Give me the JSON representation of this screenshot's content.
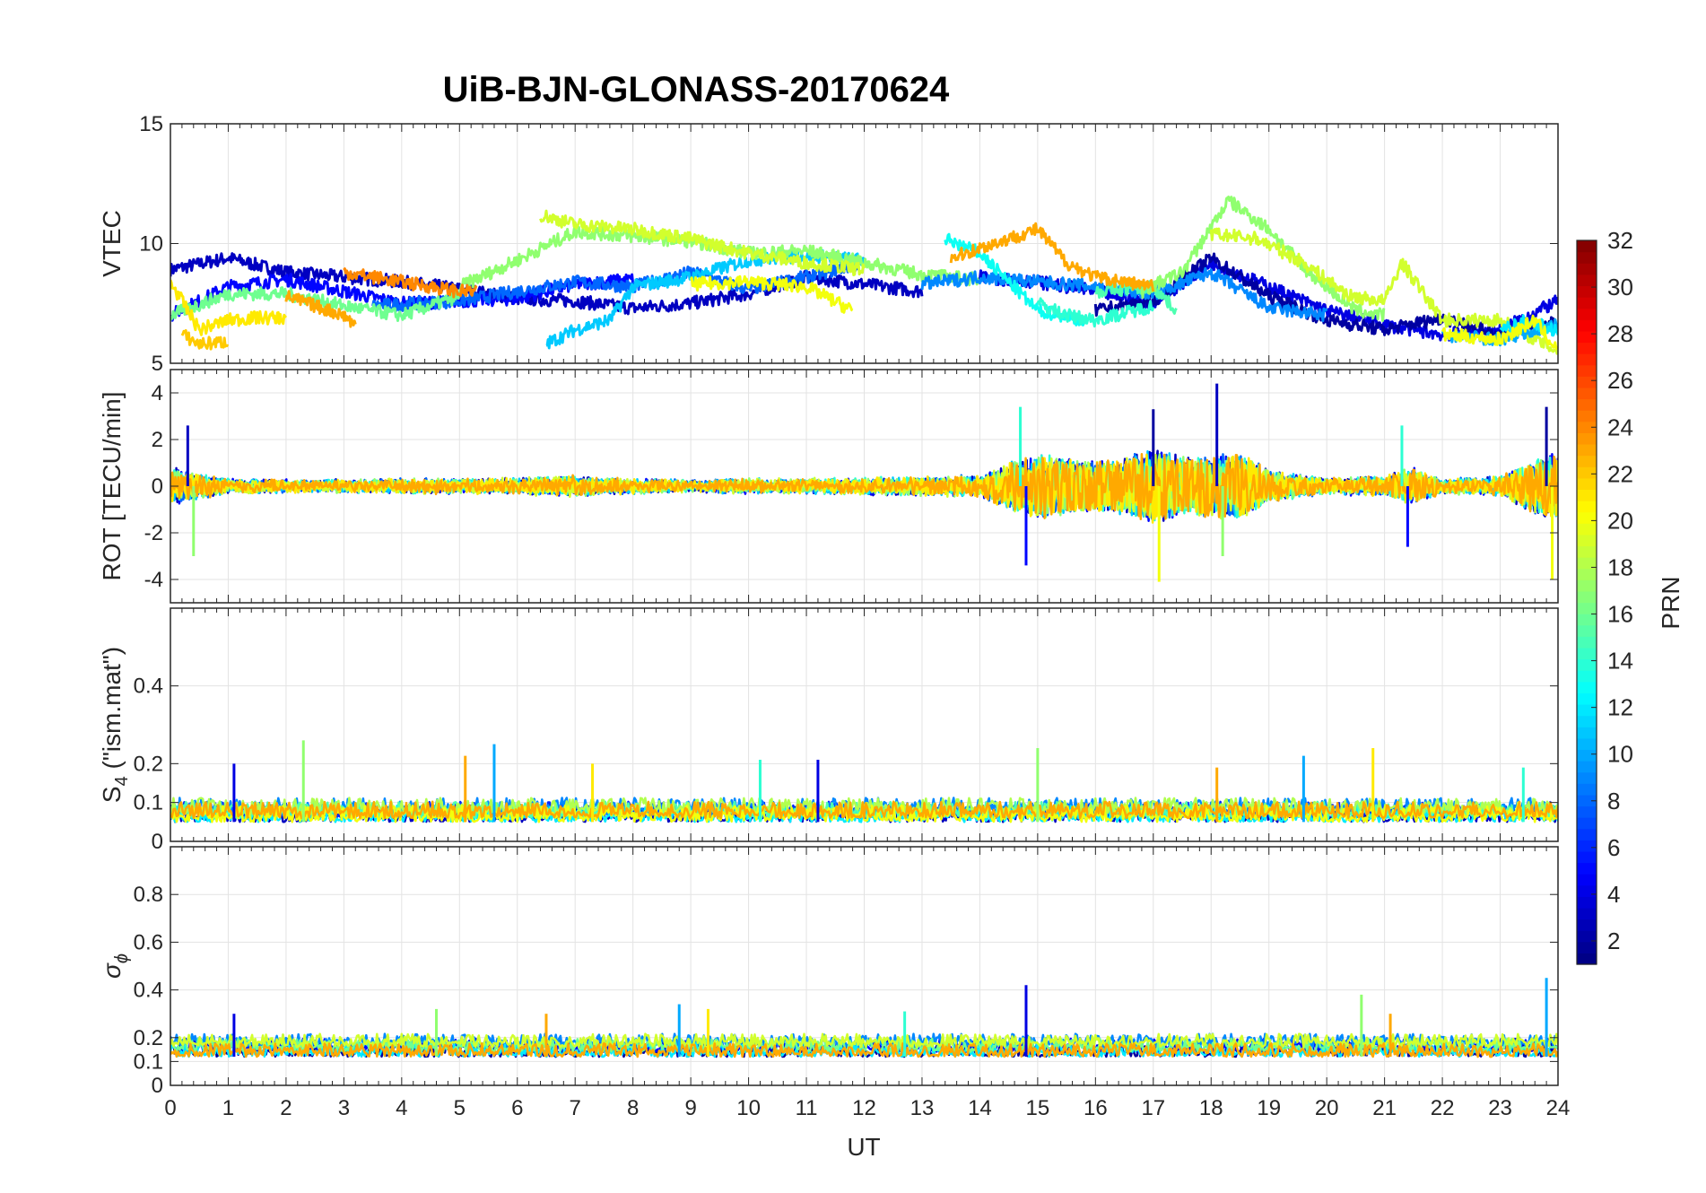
{
  "chart_data": {
    "type": "line",
    "title": "UiB-BJN-GLONASS-20170624",
    "xlabel": "UT",
    "xlim": [
      0,
      24
    ],
    "x_ticks": [
      "0",
      "1",
      "2",
      "3",
      "4",
      "5",
      "6",
      "7",
      "8",
      "9",
      "10",
      "11",
      "12",
      "13",
      "14",
      "15",
      "16",
      "17",
      "18",
      "19",
      "20",
      "21",
      "22",
      "23",
      "24"
    ],
    "grid": true,
    "colorbar": {
      "label": "PRN",
      "range": [
        1,
        32
      ],
      "ticks": [
        "2",
        "4",
        "6",
        "8",
        "10",
        "12",
        "14",
        "16",
        "18",
        "20",
        "22",
        "24",
        "26",
        "28",
        "30",
        "32"
      ],
      "colormap": "jet"
    },
    "panels": [
      {
        "ylabel": "VTEC",
        "ylim": [
          5,
          15
        ],
        "y_ticks": [
          "5",
          "10",
          "15"
        ],
        "series": [
          {
            "prn": 3,
            "x": [
              0,
              1,
              2,
              3,
              4,
              5,
              6,
              7,
              8,
              9,
              10,
              11,
              12,
              13
            ],
            "y": [
              8.9,
              9.4,
              8.8,
              8.6,
              8.4,
              8.1,
              7.7,
              7.6,
              7.3,
              7.5,
              7.9,
              8.6,
              8.3,
              8.0
            ]
          },
          {
            "prn": 5,
            "x": [
              0,
              1,
              2,
              3,
              4,
              5,
              6,
              7,
              8
            ],
            "y": [
              7.0,
              8.2,
              8.5,
              8.0,
              7.5,
              7.6,
              7.7,
              8.3,
              8.5
            ]
          },
          {
            "prn": 8,
            "x": [
              3.5,
              5,
              6,
              7,
              8,
              9,
              10,
              11,
              12
            ],
            "y": [
              7.4,
              7.6,
              8.0,
              8.4,
              8.2,
              8.8,
              8.1,
              8.6,
              9.2
            ]
          },
          {
            "prn": 11,
            "x": [
              6.5,
              7,
              7.6,
              8,
              9,
              10,
              11,
              12
            ],
            "y": [
              5.8,
              6.4,
              6.8,
              8.2,
              8.6,
              9.3,
              9.5,
              9.3
            ]
          },
          {
            "prn": 16,
            "x": [
              0,
              1,
              2,
              3,
              4,
              5
            ],
            "y": [
              7.0,
              7.9,
              7.9,
              7.4,
              7.0,
              7.8
            ]
          },
          {
            "prn": 17,
            "x": [
              5,
              6,
              7,
              8,
              9,
              10,
              11,
              12,
              13,
              14
            ],
            "y": [
              8.2,
              9.3,
              10.5,
              10.3,
              10.1,
              9.6,
              9.7,
              9.2,
              8.7,
              8.5
            ]
          },
          {
            "prn": 19,
            "x": [
              6.4,
              7,
              8,
              9,
              10,
              11,
              12
            ],
            "y": [
              11.2,
              10.8,
              10.6,
              10.2,
              9.6,
              9.2,
              8.9
            ]
          },
          {
            "prn": 20,
            "x": [
              9,
              10,
              11,
              11.8
            ],
            "y": [
              8.3,
              8.4,
              8.2,
              7.2
            ]
          },
          {
            "prn": 21,
            "x": [
              0,
              0.5,
              1,
              1.5,
              2
            ],
            "y": [
              8.4,
              6.4,
              6.8,
              6.9,
              6.9
            ]
          },
          {
            "prn": 22,
            "x": [
              0.2,
              0.5,
              1
            ],
            "y": [
              6.2,
              5.8,
              5.9
            ]
          },
          {
            "prn": 23,
            "x": [
              2,
              3,
              3.2
            ],
            "y": [
              7.8,
              7.0,
              6.6
            ]
          },
          {
            "prn": 24,
            "x": [
              3,
              4,
              5,
              5.3
            ],
            "y": [
              8.8,
              8.4,
              8.0,
              8.0
            ]
          },
          {
            "prn": 4,
            "x": [
              14,
              15,
              16,
              17,
              18,
              19,
              20,
              21,
              22,
              23,
              24
            ],
            "y": [
              8.6,
              8.4,
              8.0,
              7.5,
              9.2,
              8.2,
              7.2,
              6.6,
              6.2,
              6.4,
              7.6
            ]
          },
          {
            "prn": 2,
            "x": [
              16,
              17,
              18,
              19,
              20,
              21,
              22,
              23,
              24
            ],
            "y": [
              7.2,
              7.6,
              9.4,
              7.8,
              6.8,
              6.4,
              6.9,
              6.2,
              6.7
            ]
          },
          {
            "prn": 9,
            "x": [
              13,
              14,
              15,
              16,
              17,
              18,
              19,
              20
            ],
            "y": [
              8.3,
              8.6,
              8.4,
              8.2,
              7.9,
              8.8,
              7.3,
              7.0
            ]
          },
          {
            "prn": 13,
            "x": [
              13.4,
              14,
              15,
              15.8
            ],
            "y": [
              10.2,
              9.6,
              7.2,
              6.8
            ]
          },
          {
            "prn": 14,
            "x": [
              15,
              15.5,
              16,
              17
            ],
            "y": [
              7.5,
              7.0,
              6.8,
              7.4
            ]
          },
          {
            "prn": 15,
            "x": [
              16,
              17,
              17.4
            ],
            "y": [
              8.0,
              8.2,
              7.2
            ]
          },
          {
            "prn": 17,
            "x": [
              16.8,
              17.5,
              18.3,
              19,
              19.6,
              20.5,
              21
            ],
            "y": [
              8.0,
              8.8,
              11.8,
              10.6,
              9.0,
              7.2,
              7.0
            ]
          },
          {
            "prn": 19,
            "x": [
              18,
              18.8,
              19.6,
              20.4,
              21,
              21.3,
              22,
              23,
              24
            ],
            "y": [
              10.4,
              10.2,
              9.2,
              7.8,
              7.6,
              9.2,
              6.8,
              6.8,
              5.5
            ]
          },
          {
            "prn": 23,
            "x": [
              13.5,
              14.5,
              15,
              15.5,
              16,
              17
            ],
            "y": [
              9.4,
              10.2,
              10.6,
              9.2,
              8.6,
              8.2
            ]
          },
          {
            "prn": 10,
            "x": [
              22,
              23,
              24
            ],
            "y": [
              6.2,
              6.0,
              6.6
            ]
          },
          {
            "prn": 12,
            "x": [
              23,
              23.5,
              24
            ],
            "y": [
              6.4,
              6.8,
              6.3
            ]
          },
          {
            "prn": 20,
            "x": [
              22,
              23,
              23.6,
              24
            ],
            "y": [
              6.2,
              6.0,
              6.8,
              5.5
            ]
          }
        ]
      },
      {
        "ylabel": "ROT [TECU/min]",
        "ylim": [
          -5,
          5
        ],
        "y_ticks": [
          "-4",
          "-2",
          "0",
          "2",
          "4"
        ],
        "amplitude_by_ut": {
          "x": [
            0,
            1,
            2,
            3,
            4,
            5,
            6,
            7,
            8,
            9,
            10,
            11,
            12,
            13,
            14,
            14.5,
            15,
            15.5,
            16,
            16.5,
            17,
            17.5,
            18,
            18.5,
            19,
            20,
            21,
            21.5,
            22,
            23,
            23.5,
            24
          ],
          "y": [
            1.6,
            0.5,
            0.4,
            0.4,
            0.5,
            0.5,
            0.6,
            0.8,
            0.5,
            0.4,
            0.5,
            0.5,
            0.6,
            0.7,
            0.8,
            2.0,
            3.0,
            2.6,
            2.2,
            2.6,
            3.4,
            2.6,
            2.8,
            3.0,
            1.4,
            0.5,
            0.8,
            1.6,
            0.5,
            0.7,
            2.2,
            3.2
          ]
        },
        "peaks": [
          {
            "x": 0.3,
            "y": 2.6
          },
          {
            "x": 0.4,
            "y": -3.0
          },
          {
            "x": 14.7,
            "y": 3.4
          },
          {
            "x": 14.8,
            "y": -3.4
          },
          {
            "x": 17.0,
            "y": 3.3
          },
          {
            "x": 17.1,
            "y": -4.1
          },
          {
            "x": 18.1,
            "y": 4.4
          },
          {
            "x": 18.2,
            "y": -3.0
          },
          {
            "x": 21.3,
            "y": 2.6
          },
          {
            "x": 21.4,
            "y": -2.6
          },
          {
            "x": 23.8,
            "y": 3.4
          },
          {
            "x": 23.9,
            "y": -4.0
          }
        ]
      },
      {
        "ylabel": "S₄ (\"ism.mat\")",
        "ylabel_main": "S",
        "ylabel_sub": "4",
        "ylabel_tail": " (\"ism.mat\")",
        "ylim": [
          0,
          0.6
        ],
        "y_ticks": [
          "0",
          "0.1",
          "0.2",
          "0.4"
        ],
        "baseline": 0.05,
        "peaks": [
          {
            "x": 1.1,
            "y": 0.2
          },
          {
            "x": 2.3,
            "y": 0.26
          },
          {
            "x": 5.1,
            "y": 0.22
          },
          {
            "x": 5.6,
            "y": 0.25
          },
          {
            "x": 7.3,
            "y": 0.2
          },
          {
            "x": 10.2,
            "y": 0.21
          },
          {
            "x": 11.2,
            "y": 0.21
          },
          {
            "x": 15.0,
            "y": 0.24
          },
          {
            "x": 18.1,
            "y": 0.19
          },
          {
            "x": 19.6,
            "y": 0.22
          },
          {
            "x": 20.8,
            "y": 0.24
          },
          {
            "x": 23.4,
            "y": 0.19
          }
        ]
      },
      {
        "ylabel": "σᵩ",
        "ylabel_main": "σ",
        "ylabel_sub": "ϕ",
        "ylim": [
          0,
          1
        ],
        "y_ticks": [
          "0",
          "0.1",
          "0.2",
          "0.4",
          "0.6",
          "0.8"
        ],
        "baseline": 0.12,
        "peaks": [
          {
            "x": 1.1,
            "y": 0.3
          },
          {
            "x": 4.6,
            "y": 0.32
          },
          {
            "x": 6.5,
            "y": 0.3
          },
          {
            "x": 8.8,
            "y": 0.34
          },
          {
            "x": 9.3,
            "y": 0.32
          },
          {
            "x": 12.7,
            "y": 0.31
          },
          {
            "x": 14.8,
            "y": 0.42
          },
          {
            "x": 20.6,
            "y": 0.38
          },
          {
            "x": 21.1,
            "y": 0.3
          },
          {
            "x": 23.8,
            "y": 0.45
          }
        ]
      }
    ]
  }
}
